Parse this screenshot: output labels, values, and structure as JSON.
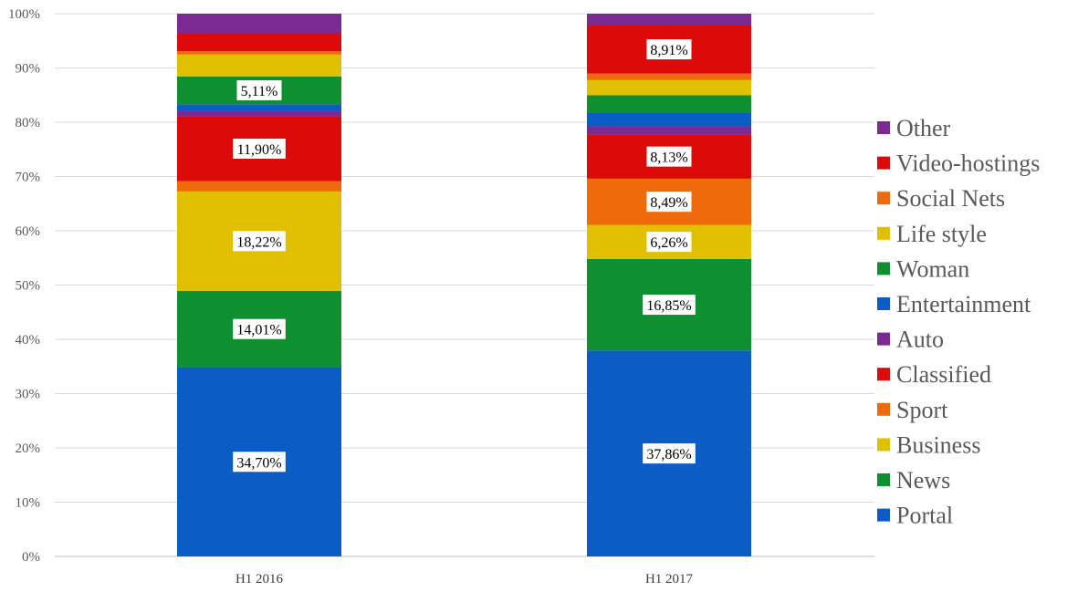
{
  "chart_data": {
    "type": "bar",
    "stacked": true,
    "normalized": true,
    "categories": [
      "H1 2016",
      "H1 2017"
    ],
    "y_ticks": [
      "0%",
      "10%",
      "20%",
      "30%",
      "40%",
      "50%",
      "60%",
      "70%",
      "80%",
      "90%",
      "100%"
    ],
    "ylim": [
      0,
      100
    ],
    "grid": true,
    "legend_position": "right",
    "series": [
      {
        "name": "Portal",
        "color": "#0b5cc4",
        "values": [
          34.7,
          37.86
        ],
        "labels": [
          "34,70%",
          "37,86%"
        ]
      },
      {
        "name": "News",
        "color": "#0f9030",
        "values": [
          14.01,
          16.85
        ],
        "labels": [
          "14,01%",
          "16,85%"
        ]
      },
      {
        "name": "Business",
        "color": "#e0c000",
        "values": [
          18.22,
          6.26
        ],
        "labels": [
          "18,22%",
          "6,26%"
        ]
      },
      {
        "name": "Sport",
        "color": "#ef6a0a",
        "values": [
          1.9,
          8.49
        ],
        "labels": [
          "",
          "8,49%"
        ]
      },
      {
        "name": "Classified",
        "color": "#dd0a0a",
        "values": [
          11.9,
          8.13
        ],
        "labels": [
          "11,90%",
          "8,13%"
        ]
      },
      {
        "name": "Auto",
        "color": "#7b2a94",
        "values": [
          1.0,
          1.5
        ],
        "labels": [
          "",
          ""
        ]
      },
      {
        "name": "Entertainment",
        "color": "#0b5cc4",
        "values": [
          1.2,
          2.5
        ],
        "labels": [
          "",
          ""
        ]
      },
      {
        "name": "Woman",
        "color": "#0f9030",
        "values": [
          5.11,
          3.2
        ],
        "labels": [
          "5,11%",
          ""
        ]
      },
      {
        "name": "Life style",
        "color": "#e0c000",
        "values": [
          4.0,
          2.8
        ],
        "labels": [
          "",
          ""
        ]
      },
      {
        "name": "Social Nets",
        "color": "#ef6a0a",
        "values": [
          0.6,
          1.2
        ],
        "labels": [
          "",
          ""
        ]
      },
      {
        "name": "Video-hostings",
        "color": "#dd0a0a",
        "values": [
          3.3,
          8.91
        ],
        "labels": [
          "",
          "8,91%"
        ]
      },
      {
        "name": "Other",
        "color": "#7b2a94",
        "values": [
          3.6,
          2.1
        ],
        "labels": [
          "",
          ""
        ]
      }
    ],
    "legend_order": [
      "Other",
      "Video-hostings",
      "Social Nets",
      "Life style",
      "Woman",
      "Entertainment",
      "Auto",
      "Classified",
      "Sport",
      "Business",
      "News",
      "Portal"
    ]
  }
}
